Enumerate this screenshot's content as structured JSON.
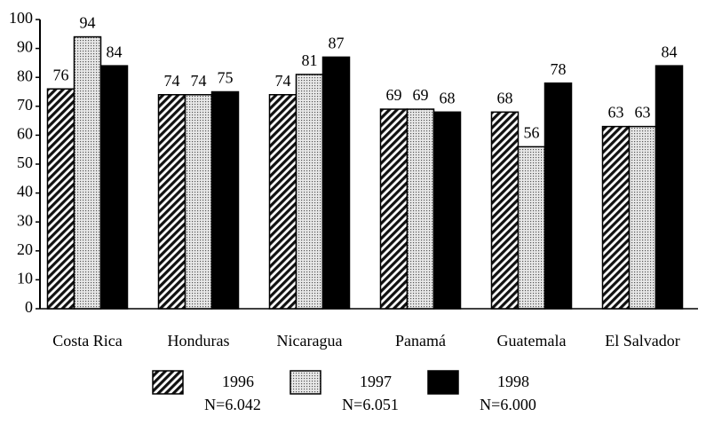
{
  "chart_data": {
    "type": "bar",
    "categories": [
      "Costa Rica",
      "Honduras",
      "Nicaragua",
      "Panamá",
      "Guatemala",
      "El Salvador"
    ],
    "series": [
      {
        "name": "1996",
        "note": "N=6.042",
        "color": "#000000",
        "fill": "hatch",
        "values": [
          76,
          74,
          74,
          69,
          68,
          63
        ]
      },
      {
        "name": "1997",
        "note": "N=6.051",
        "color": "#000000",
        "fill": "dots",
        "values": [
          94,
          74,
          81,
          69,
          56,
          63
        ]
      },
      {
        "name": "1998",
        "note": "N=6.000",
        "color": "#000000",
        "fill": "solid",
        "values": [
          84,
          75,
          87,
          68,
          78,
          84
        ]
      }
    ],
    "ylim": [
      0,
      100
    ],
    "yticks": [
      0,
      10,
      20,
      30,
      40,
      50,
      60,
      70,
      80,
      90,
      100
    ],
    "grid": false,
    "data_labels": true,
    "legend": "bottom"
  }
}
